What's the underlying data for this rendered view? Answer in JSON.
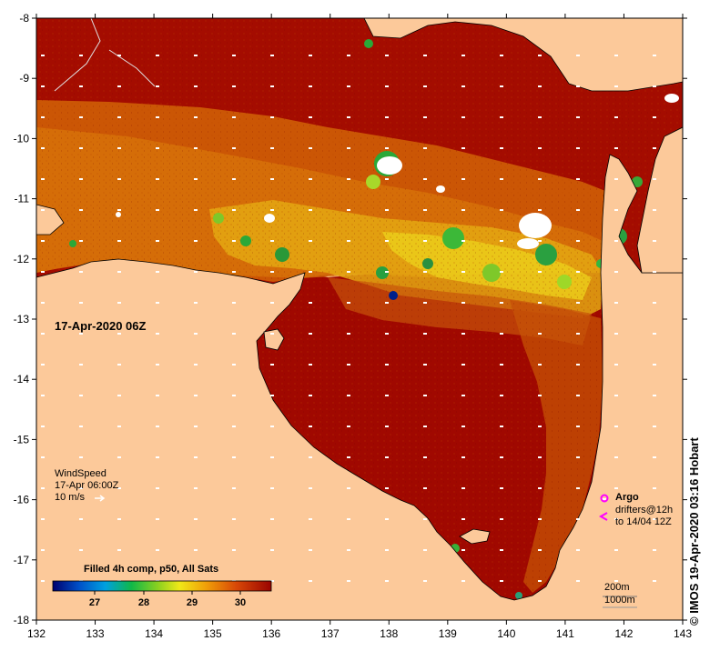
{
  "map": {
    "lon_ticks": [
      "132",
      "133",
      "134",
      "135",
      "136",
      "137",
      "138",
      "139",
      "140",
      "141",
      "142",
      "143"
    ],
    "lat_ticks": [
      "-8",
      "-9",
      "-10",
      "-11",
      "-12",
      "-13",
      "-14",
      "-15",
      "-16",
      "-17",
      "-18"
    ],
    "date_label": "17-Apr-2020 06Z",
    "wind": {
      "title": "WindSpeed",
      "time": "17-Apr 06:00Z",
      "scale": "10 m/s"
    },
    "legend": {
      "argo": "Argo",
      "drifters": "drifters@12h",
      "drifters_to": "to 14/04 12Z"
    },
    "isobaths": {
      "shallow": "200m",
      "deep": "1000m"
    },
    "colorbar": {
      "title": "Filled 4h comp, p50, All Sats",
      "ticks": [
        "27",
        "28",
        "29",
        "30"
      ]
    },
    "credit": "© IMOS 19-Apr-2020 03:16 Hobart",
    "colors": {
      "land": "#fcc99a",
      "sst_warm": "#9a0800",
      "sst_mid": "#d26a08",
      "sst_cool": "#e7b814",
      "argo": "#ff00ff"
    }
  }
}
